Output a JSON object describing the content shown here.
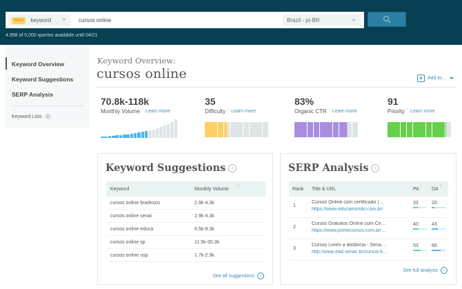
{
  "topbar": {
    "new_badge": "New!",
    "search_type": "keyword",
    "query_value": "cursos online",
    "locale": "Brazil - pt-BR",
    "quota_text": "4,998 of 5,000 queries available until 04/21"
  },
  "sidebar": {
    "items": [
      {
        "label": "Keyword Overview",
        "active": true
      },
      {
        "label": "Keyword Suggestions",
        "active": false
      },
      {
        "label": "SERP Analysis",
        "active": false
      }
    ],
    "lists_label": "Keyword Lists",
    "lists_count": "2"
  },
  "header": {
    "kicker": "Keyword Overview:",
    "title": "cursos online",
    "add_to_label": "Add to..."
  },
  "metrics": [
    {
      "value": "70.8k-118k",
      "label": "Monthly Volume",
      "learn_more": "Learn more",
      "color": "#4fb6e6"
    },
    {
      "value": "35",
      "label": "Difficulty",
      "learn_more": "Learn more",
      "color": "#fdd064",
      "percent": 35
    },
    {
      "value": "83%",
      "label": "Organic CTR",
      "learn_more": "Learn more",
      "color": "#a98ee0",
      "percent": 83
    },
    {
      "value": "91",
      "label": "Priority",
      "learn_more": "Learn more",
      "color": "#66cf4c",
      "percent": 91
    }
  ],
  "volume_histogram": {
    "filled_color": "#4fb6e6",
    "empty_color": "#dfe5e5",
    "heights": [
      2,
      2,
      3,
      3,
      4,
      4,
      5,
      5,
      6,
      7,
      8,
      9,
      10,
      11,
      12,
      14,
      16,
      18,
      20,
      23,
      27
    ],
    "filled_count": 13
  },
  "suggestions": {
    "title": "Keyword Suggestions",
    "columns": [
      "Keyword",
      "Monthly Volume"
    ],
    "rows": [
      {
        "keyword": "cursos online bradesco",
        "volume": "2.9k-4.3k"
      },
      {
        "keyword": "cursos online senai",
        "volume": "2.9k-4.3k"
      },
      {
        "keyword": "cursos online educa",
        "volume": "6.5k-9.3k"
      },
      {
        "keyword": "cursos online sp",
        "volume": "11.5k-30.3k"
      },
      {
        "keyword": "cursos online usp",
        "volume": "1.7k-2.9k"
      }
    ],
    "footer_link": "See all suggestions"
  },
  "serp": {
    "title": "SERP Analysis",
    "columns": [
      "Rank",
      "Title & URL",
      "PA",
      "DA"
    ],
    "rows": [
      {
        "rank": "1",
        "title": "Cursos Online com certificado | Educa...",
        "url": "https://www.educamundo.com.br/",
        "pa": "33",
        "da": "20"
      },
      {
        "rank": "2",
        "title": "Cursos Gratuitos Online com Certificad...",
        "url": "https://www.primecursos.com.br/curso...",
        "pa": "40",
        "da": "43"
      },
      {
        "rank": "3",
        "title": "Cursos Livres a distância - Senac EAD",
        "url": "http://www.ead.senac.br/cursos-livres/",
        "pa": "53",
        "da": "66"
      }
    ],
    "footer_link": "See full analysis",
    "pa_color": "#4fd9b6",
    "pa_track": "#c8f4e8",
    "da_color": "#4fb6e6",
    "da_track": "#c8ebf8"
  }
}
